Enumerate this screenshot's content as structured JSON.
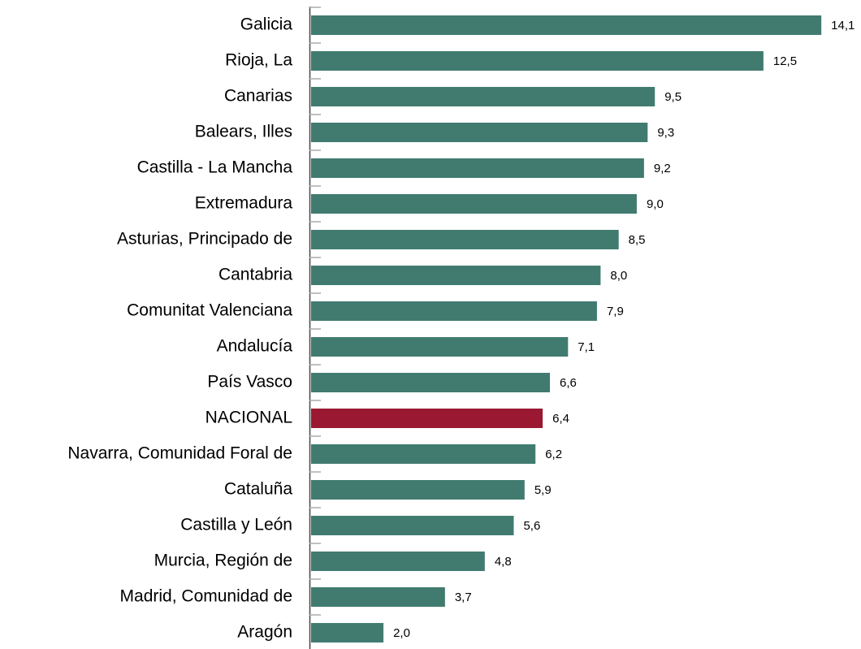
{
  "chart_data": {
    "type": "bar",
    "orientation": "horizontal",
    "categories": [
      "Galicia",
      "Rioja, La",
      "Canarias",
      "Balears, Illes",
      "Castilla - La Mancha",
      "Extremadura",
      "Asturias, Principado de",
      "Cantabria",
      "Comunitat Valenciana",
      "Andalucía",
      "País Vasco",
      "NACIONAL",
      "Navarra, Comunidad Foral de",
      "Cataluña",
      "Castilla y León",
      "Murcia, Región de",
      "Madrid, Comunidad de",
      "Aragón"
    ],
    "values": [
      14.1,
      12.5,
      9.5,
      9.3,
      9.2,
      9.0,
      8.5,
      8.0,
      7.9,
      7.1,
      6.6,
      6.4,
      6.2,
      5.9,
      5.6,
      4.8,
      3.7,
      2.0
    ],
    "value_labels": [
      "14,1",
      "12,5",
      "9,5",
      "9,3",
      "9,2",
      "9,0",
      "8,5",
      "8,0",
      "7,9",
      "7,1",
      "6,6",
      "6,4",
      "6,2",
      "5,9",
      "5,6",
      "4,8",
      "3,7",
      "2,0"
    ],
    "colors": [
      "#417b70",
      "#417b70",
      "#417b70",
      "#417b70",
      "#417b70",
      "#417b70",
      "#417b70",
      "#417b70",
      "#417b70",
      "#417b70",
      "#417b70",
      "#9a1832",
      "#417b70",
      "#417b70",
      "#417b70",
      "#417b70",
      "#417b70",
      "#417b70"
    ]
  }
}
